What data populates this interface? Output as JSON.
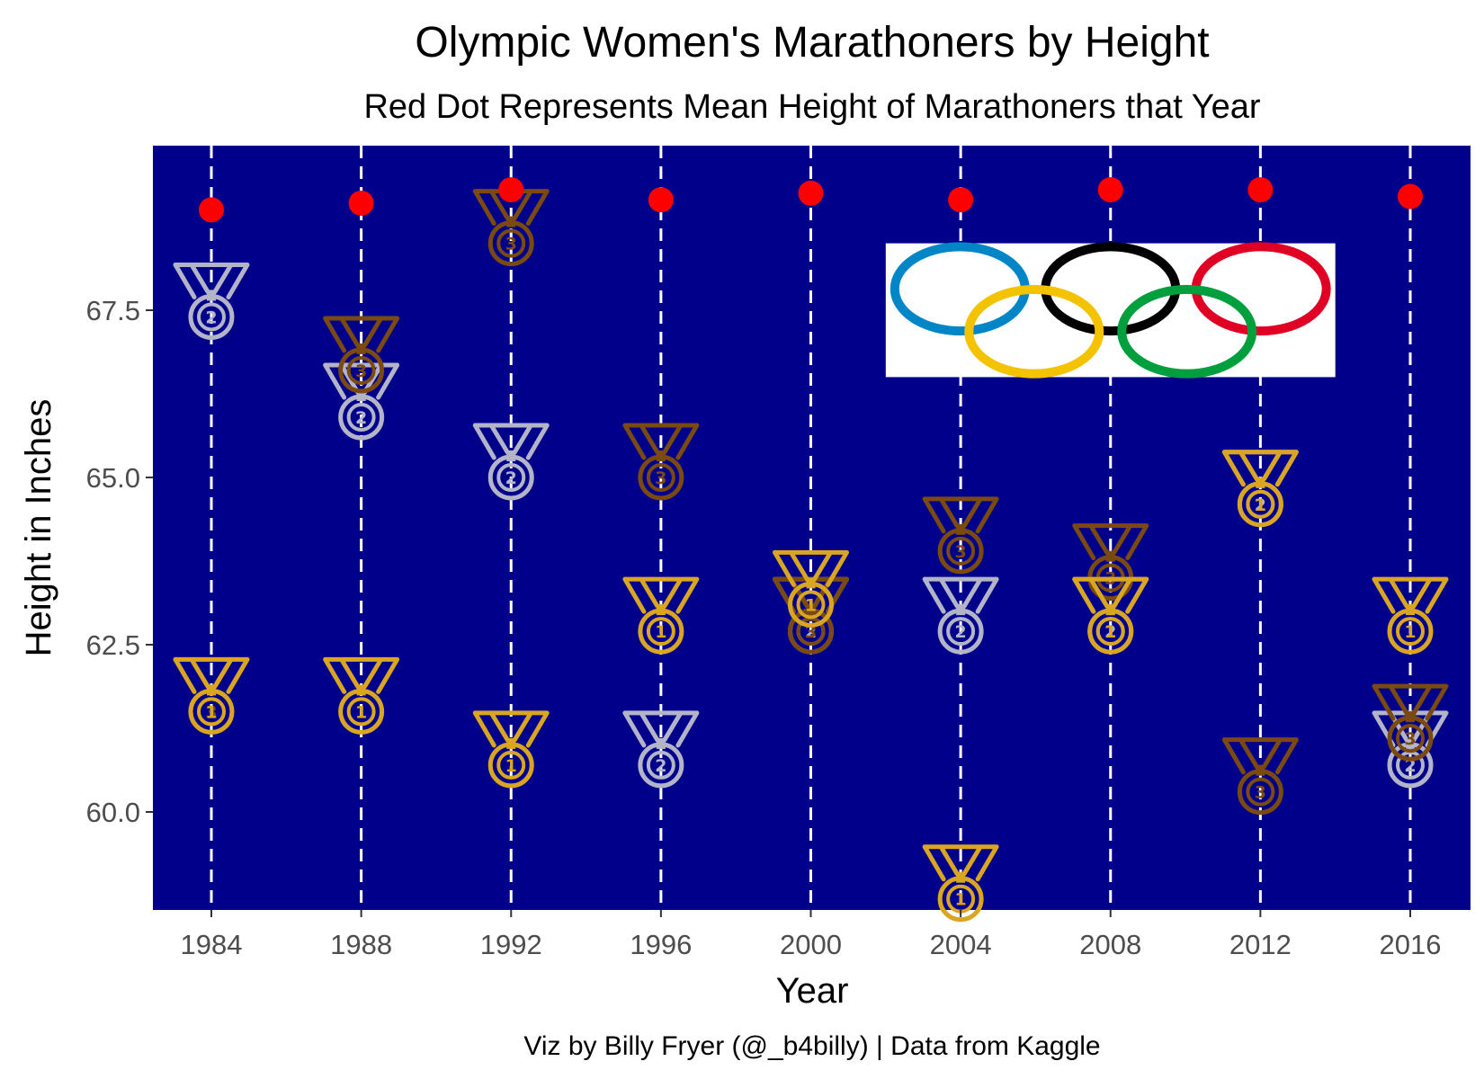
{
  "chart_data": {
    "type": "scatter",
    "title": "Olympic Women's Marathoners by Height",
    "subtitle": "Red Dot Represents Mean Height of Marathoners that Year",
    "xlabel": "Year",
    "ylabel": "Height in Inches",
    "caption": "Viz by Billy Fryer (@_b4billy) | Data from Kaggle",
    "x_ticks": [
      "1984",
      "1988",
      "1992",
      "1996",
      "2000",
      "2004",
      "2008",
      "2012",
      "2016"
    ],
    "y_ticks": [
      "60.0",
      "62.5",
      "65.0",
      "67.5"
    ],
    "ylim": [
      58.5,
      69.9
    ],
    "xlim": [
      1982,
      2018
    ],
    "grid": "vertical dashed lines at each year",
    "background_color": "#00008B",
    "mean_dot_color": "#FF0000",
    "medal_colors": {
      "1": "#DAA520",
      "2": "#B4B4C8",
      "3": "#7A4A10"
    },
    "medalists": [
      {
        "year": 1984,
        "medal": 1,
        "height": 61.5
      },
      {
        "year": 1984,
        "medal": 2,
        "height": 67.4
      },
      {
        "year": 1984,
        "medal": 3,
        "height": 61.5
      },
      {
        "year": 1988,
        "medal": 1,
        "height": 61.5
      },
      {
        "year": 1988,
        "medal": 2,
        "height": 65.9
      },
      {
        "year": 1988,
        "medal": 3,
        "height": 66.6
      },
      {
        "year": 1992,
        "medal": 1,
        "height": 60.7
      },
      {
        "year": 1992,
        "medal": 2,
        "height": 65.0
      },
      {
        "year": 1992,
        "medal": 3,
        "height": 68.5
      },
      {
        "year": 1996,
        "medal": 1,
        "height": 62.7
      },
      {
        "year": 1996,
        "medal": 2,
        "height": 60.7
      },
      {
        "year": 1996,
        "medal": 3,
        "height": 65.0
      },
      {
        "year": 2000,
        "medal": 1,
        "height": 63.1
      },
      {
        "year": 2000,
        "medal": 2,
        "height": 62.7
      },
      {
        "year": 2000,
        "medal": 3,
        "height": 62.7
      },
      {
        "year": 2004,
        "medal": 1,
        "height": 58.7
      },
      {
        "year": 2004,
        "medal": 2,
        "height": 62.7
      },
      {
        "year": 2004,
        "medal": 3,
        "height": 63.9
      },
      {
        "year": 2008,
        "medal": 1,
        "height": 62.7
      },
      {
        "year": 2008,
        "medal": 2,
        "height": 62.7
      },
      {
        "year": 2008,
        "medal": 3,
        "height": 63.5
      },
      {
        "year": 2012,
        "medal": 1,
        "height": 64.6
      },
      {
        "year": 2012,
        "medal": 2,
        "height": 64.6
      },
      {
        "year": 2012,
        "medal": 3,
        "height": 60.3
      },
      {
        "year": 2016,
        "medal": 1,
        "height": 62.7
      },
      {
        "year": 2016,
        "medal": 2,
        "height": 60.7
      },
      {
        "year": 2016,
        "medal": 3,
        "height": 61.1
      }
    ],
    "mean_heights": [
      {
        "year": 1984,
        "height": 69.0
      },
      {
        "year": 1988,
        "height": 69.1
      },
      {
        "year": 1992,
        "height": 69.3
      },
      {
        "year": 1996,
        "height": 69.15
      },
      {
        "year": 2000,
        "height": 69.25
      },
      {
        "year": 2004,
        "height": 69.15
      },
      {
        "year": 2008,
        "height": 69.3
      },
      {
        "year": 2012,
        "height": 69.3
      },
      {
        "year": 2016,
        "height": 69.2
      }
    ],
    "logo": {
      "name": "olympic-rings",
      "ring_colors": [
        "#0085C7",
        "#F4C300",
        "#000000",
        "#009F3D",
        "#DF0024"
      ],
      "span_x_years": [
        2002,
        2014
      ],
      "span_y_height": [
        66.5,
        68.5
      ]
    }
  }
}
